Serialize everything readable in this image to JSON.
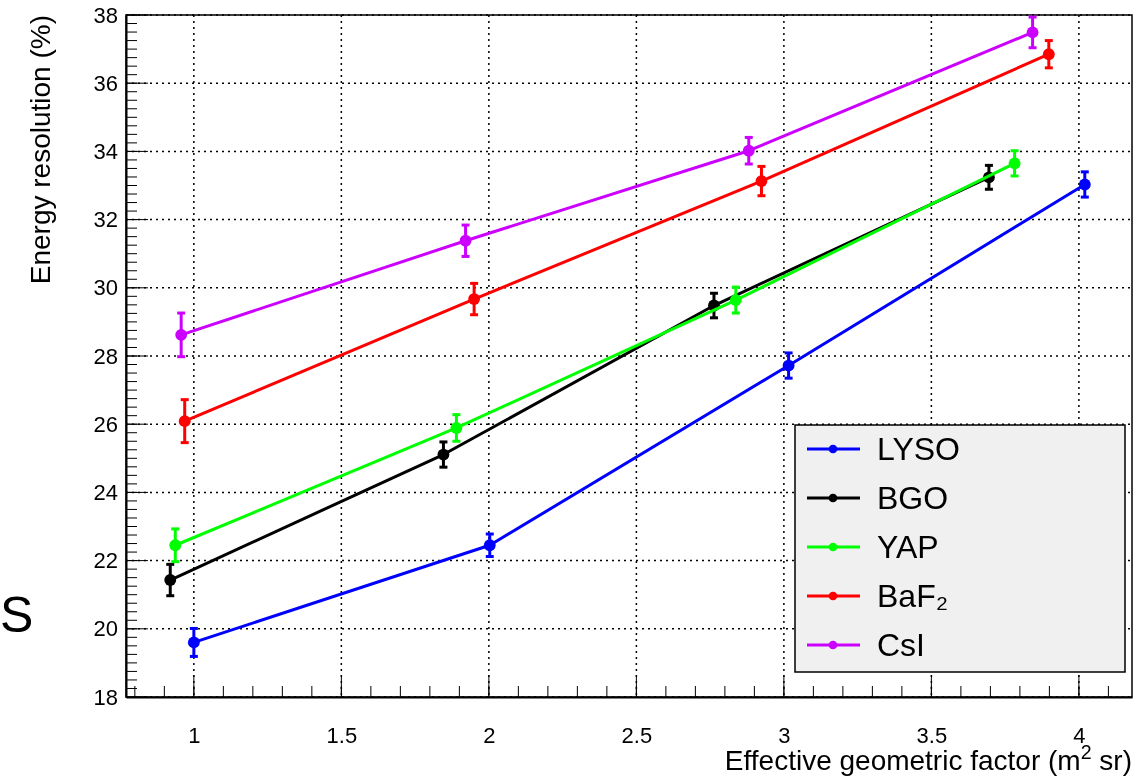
{
  "chart_data": {
    "type": "line",
    "xlabel": "Effective geometric factor (m$^{2}$ sr)",
    "ylabel": "Energy resolution (%)",
    "xlim": [
      0.77,
      4.18
    ],
    "xticks": [
      1,
      1.5,
      2,
      2.5,
      3,
      3.5,
      4
    ],
    "ylim": [
      18,
      38
    ],
    "yticks": [
      18,
      20,
      22,
      24,
      26,
      28,
      30,
      32,
      34,
      36,
      38
    ],
    "grid": true,
    "legend": "bottom right",
    "marker": "circle",
    "line_style": "solid",
    "annotations": [
      "S"
    ],
    "series": [
      {
        "name": "LYSO",
        "color": "#0000ff",
        "x": [
          1.0,
          2.003,
          3.016,
          4.02
        ],
        "values": [
          19.6,
          22.45,
          27.72,
          33.03
        ],
        "errors": [
          0.41,
          0.33,
          0.37,
          0.37
        ]
      },
      {
        "name": "BGO",
        "color": "#000000",
        "x": [
          0.92,
          1.846,
          2.763,
          3.695
        ],
        "values": [
          21.43,
          25.11,
          29.48,
          33.24
        ],
        "errors": [
          0.46,
          0.37,
          0.36,
          0.35
        ]
      },
      {
        "name": "YAP",
        "color": "#00ff00",
        "x": [
          0.937,
          1.89,
          2.837,
          3.782
        ],
        "values": [
          22.45,
          25.89,
          29.64,
          33.65
        ],
        "errors": [
          0.48,
          0.39,
          0.38,
          0.37
        ]
      },
      {
        "name": "BaF₂",
        "color": "#ff0000",
        "x": [
          0.969,
          1.95,
          2.924,
          3.898
        ],
        "values": [
          26.09,
          29.67,
          33.13,
          36.85
        ],
        "errors": [
          0.63,
          0.46,
          0.43,
          0.4
        ]
      },
      {
        "name": "CsI",
        "color": "#cc00ff",
        "x": [
          0.957,
          1.921,
          2.881,
          3.843
        ],
        "values": [
          28.62,
          31.38,
          34.02,
          37.49
        ],
        "errors": [
          0.64,
          0.46,
          0.39,
          0.45
        ]
      }
    ]
  }
}
